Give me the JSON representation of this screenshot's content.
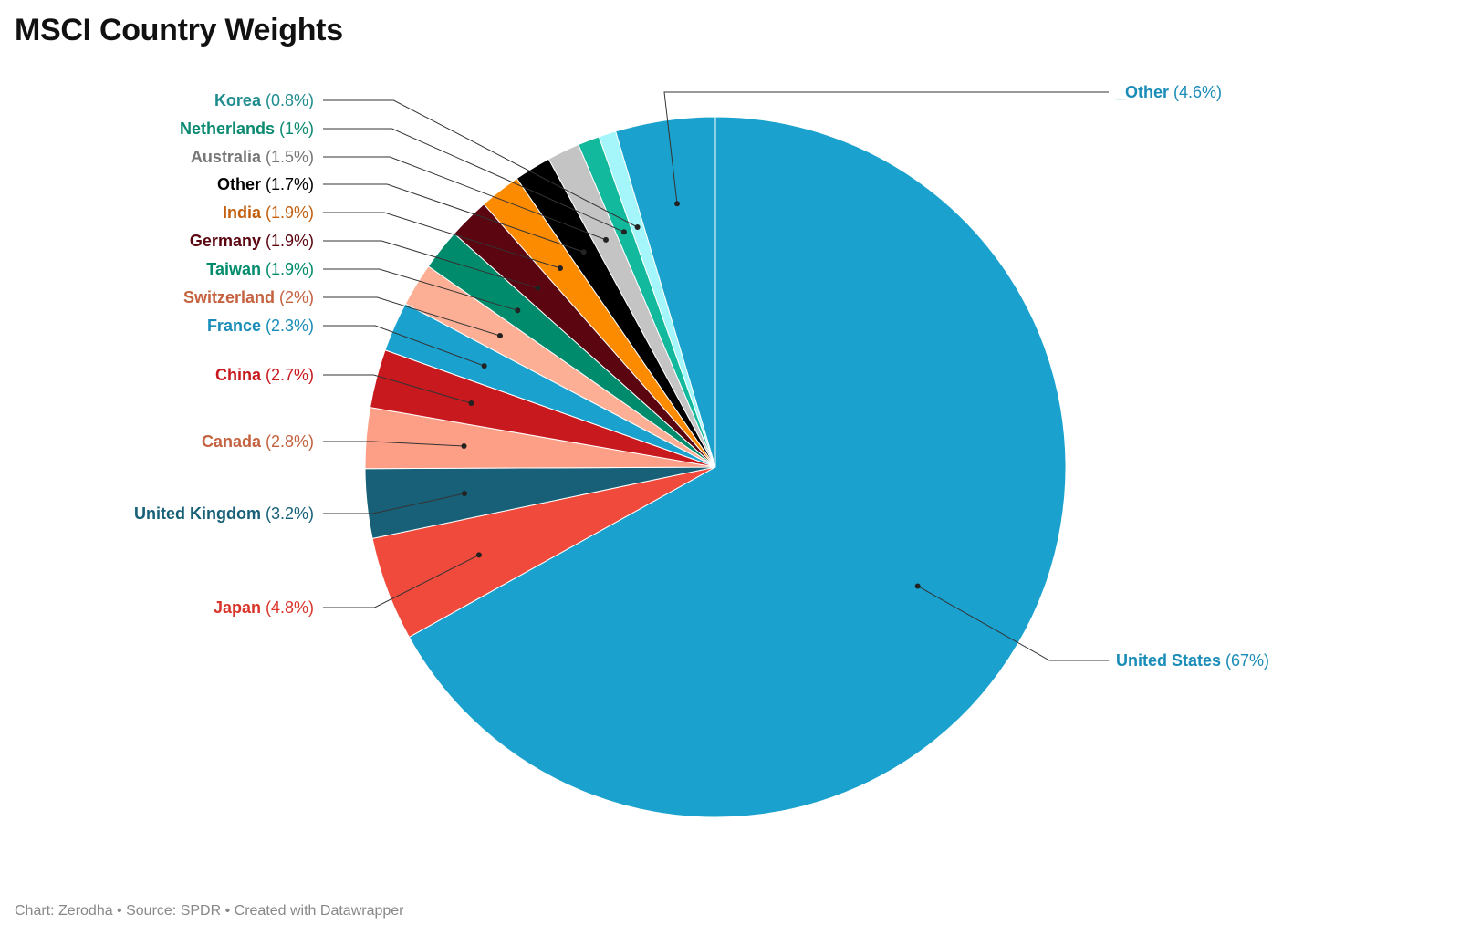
{
  "title": "MSCI Country Weights",
  "footer": {
    "text": "Chart: Zerodha • Source: SPDR • Created with Datawrapper"
  },
  "chart_data": {
    "type": "pie",
    "title": "MSCI Country Weights",
    "slices": [
      {
        "label": "United States",
        "value": 67,
        "value_label": "67%",
        "color": "#1aa1ce",
        "label_color": "#1a8cb8"
      },
      {
        "label": "Japan",
        "value": 4.8,
        "value_label": "4.8%",
        "color": "#ef4a3b",
        "label_color": "#d9352a"
      },
      {
        "label": "United Kingdom",
        "value": 3.2,
        "value_label": "3.2%",
        "color": "#176078",
        "label_color": "#176078"
      },
      {
        "label": "Canada",
        "value": 2.8,
        "value_label": "2.8%",
        "color": "#fd9e86",
        "label_color": "#c4623f"
      },
      {
        "label": "China",
        "value": 2.7,
        "value_label": "2.7%",
        "color": "#c8191e",
        "label_color": "#c8191e"
      },
      {
        "label": "France",
        "value": 2.3,
        "value_label": "2.3%",
        "color": "#1aa1ce",
        "label_color": "#1a8cb8"
      },
      {
        "label": "Switzerland",
        "value": 2,
        "value_label": "2%",
        "color": "#fdaf95",
        "label_color": "#c4623f"
      },
      {
        "label": "Taiwan",
        "value": 1.9,
        "value_label": "1.9%",
        "color": "#008c6c",
        "label_color": "#008c6c"
      },
      {
        "label": "Germany",
        "value": 1.9,
        "value_label": "1.9%",
        "color": "#5b0510",
        "label_color": "#5b0510"
      },
      {
        "label": "India",
        "value": 1.9,
        "value_label": "1.9%",
        "color": "#fc8b00",
        "label_color": "#c26010"
      },
      {
        "label": "Other",
        "value": 1.7,
        "value_label": "1.7%",
        "color": "#000000",
        "label_color": "#000000"
      },
      {
        "label": "Australia",
        "value": 1.5,
        "value_label": "1.5%",
        "color": "#c4c4c4",
        "label_color": "#777777"
      },
      {
        "label": "Netherlands",
        "value": 1,
        "value_label": "1%",
        "color": "#12b99c",
        "label_color": "#0a8a70"
      },
      {
        "label": "Korea",
        "value": 0.8,
        "value_label": "0.8%",
        "color": "#a4f6fa",
        "label_color": "#1f8c8e"
      },
      {
        "label": "_Other",
        "value": 4.6,
        "value_label": "4.6%",
        "color": "#1aa1ce",
        "label_color": "#1a8cb8"
      }
    ],
    "legend": "none",
    "labels": "outside with leader lines"
  }
}
